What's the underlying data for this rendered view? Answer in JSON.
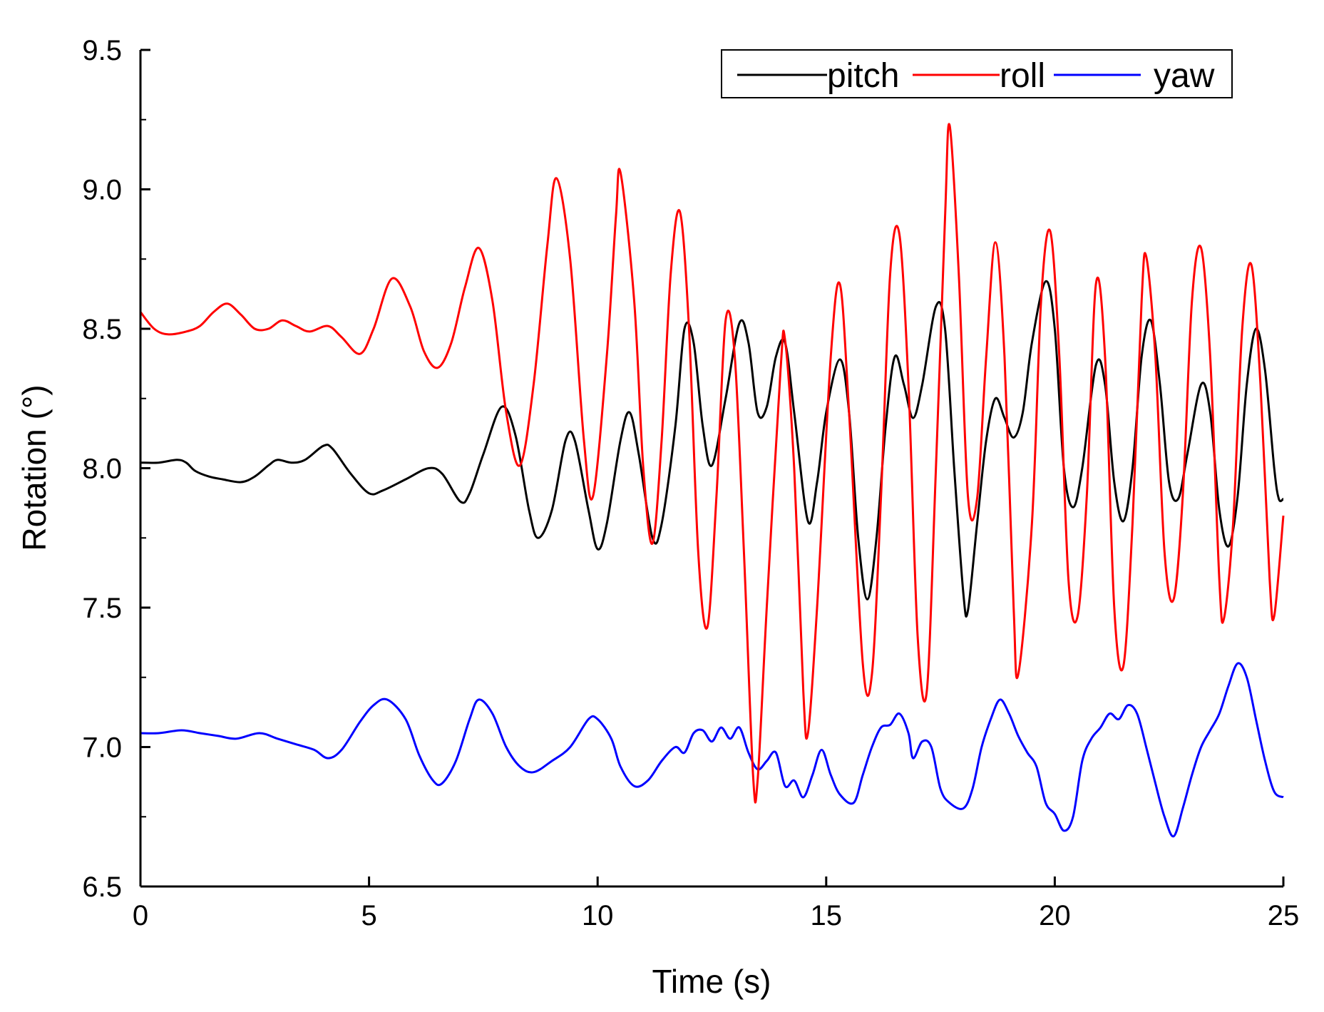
{
  "chart_data": {
    "type": "line",
    "title": "",
    "xlabel": "Time (s)",
    "ylabel": "Rotation (°)",
    "xlim": [
      0,
      25
    ],
    "ylim": [
      6.5,
      9.5
    ],
    "x_ticks": [
      0,
      5,
      10,
      15,
      20,
      25
    ],
    "x_tick_labels": [
      "0",
      "5",
      "10",
      "15",
      "20",
      "25"
    ],
    "y_ticks": [
      6.5,
      7.0,
      7.5,
      8.0,
      8.5,
      9.0,
      9.5
    ],
    "y_tick_labels": [
      "6.5",
      "7.0",
      "7.5",
      "8.0",
      "8.5",
      "9.0",
      "9.5"
    ],
    "grid": false,
    "legend_position": "top-right",
    "series": [
      {
        "name": "pitch",
        "color": "#000000",
        "points": [
          [
            0,
            8.02
          ],
          [
            0.4,
            8.02
          ],
          [
            0.8,
            8.03
          ],
          [
            1.0,
            8.02
          ],
          [
            1.2,
            7.99
          ],
          [
            1.5,
            7.97
          ],
          [
            1.8,
            7.96
          ],
          [
            2.2,
            7.95
          ],
          [
            2.5,
            7.97
          ],
          [
            2.8,
            8.01
          ],
          [
            3.0,
            8.03
          ],
          [
            3.3,
            8.02
          ],
          [
            3.6,
            8.03
          ],
          [
            4.0,
            8.08
          ],
          [
            4.2,
            8.07
          ],
          [
            4.6,
            7.98
          ],
          [
            5.0,
            7.91
          ],
          [
            5.3,
            7.92
          ],
          [
            5.8,
            7.96
          ],
          [
            6.3,
            8.0
          ],
          [
            6.6,
            7.98
          ],
          [
            7.0,
            7.88
          ],
          [
            7.2,
            7.91
          ],
          [
            7.5,
            8.05
          ],
          [
            7.9,
            8.22
          ],
          [
            8.2,
            8.12
          ],
          [
            8.5,
            7.85
          ],
          [
            8.7,
            7.75
          ],
          [
            9.0,
            7.85
          ],
          [
            9.3,
            8.1
          ],
          [
            9.5,
            8.1
          ],
          [
            9.8,
            7.85
          ],
          [
            10.0,
            7.71
          ],
          [
            10.2,
            7.8
          ],
          [
            10.5,
            8.1
          ],
          [
            10.7,
            8.2
          ],
          [
            10.9,
            8.05
          ],
          [
            11.2,
            7.75
          ],
          [
            11.4,
            7.8
          ],
          [
            11.7,
            8.15
          ],
          [
            11.9,
            8.5
          ],
          [
            12.1,
            8.45
          ],
          [
            12.3,
            8.15
          ],
          [
            12.5,
            8.01
          ],
          [
            12.8,
            8.25
          ],
          [
            13.1,
            8.52
          ],
          [
            13.3,
            8.45
          ],
          [
            13.5,
            8.2
          ],
          [
            13.7,
            8.22
          ],
          [
            13.9,
            8.4
          ],
          [
            14.1,
            8.45
          ],
          [
            14.3,
            8.2
          ],
          [
            14.6,
            7.81
          ],
          [
            14.8,
            7.95
          ],
          [
            15.0,
            8.2
          ],
          [
            15.3,
            8.39
          ],
          [
            15.5,
            8.2
          ],
          [
            15.7,
            7.75
          ],
          [
            15.9,
            7.53
          ],
          [
            16.1,
            7.75
          ],
          [
            16.3,
            8.15
          ],
          [
            16.5,
            8.4
          ],
          [
            16.7,
            8.3
          ],
          [
            16.9,
            8.18
          ],
          [
            17.1,
            8.3
          ],
          [
            17.4,
            8.58
          ],
          [
            17.6,
            8.5
          ],
          [
            17.8,
            8.0
          ],
          [
            18.0,
            7.55
          ],
          [
            18.1,
            7.49
          ],
          [
            18.3,
            7.8
          ],
          [
            18.5,
            8.1
          ],
          [
            18.7,
            8.25
          ],
          [
            18.9,
            8.18
          ],
          [
            19.1,
            8.11
          ],
          [
            19.3,
            8.2
          ],
          [
            19.5,
            8.45
          ],
          [
            19.8,
            8.67
          ],
          [
            20.0,
            8.5
          ],
          [
            20.2,
            8.0
          ],
          [
            20.4,
            7.86
          ],
          [
            20.6,
            8.0
          ],
          [
            20.9,
            8.37
          ],
          [
            21.1,
            8.3
          ],
          [
            21.3,
            7.95
          ],
          [
            21.5,
            7.81
          ],
          [
            21.7,
            8.0
          ],
          [
            21.9,
            8.4
          ],
          [
            22.1,
            8.53
          ],
          [
            22.3,
            8.3
          ],
          [
            22.5,
            7.95
          ],
          [
            22.7,
            7.89
          ],
          [
            22.9,
            8.05
          ],
          [
            23.2,
            8.3
          ],
          [
            23.4,
            8.2
          ],
          [
            23.6,
            7.85
          ],
          [
            23.8,
            7.72
          ],
          [
            24.0,
            7.9
          ],
          [
            24.2,
            8.3
          ],
          [
            24.4,
            8.5
          ],
          [
            24.6,
            8.35
          ],
          [
            24.8,
            8.0
          ],
          [
            24.9,
            7.89
          ],
          [
            25.0,
            7.89
          ]
        ]
      },
      {
        "name": "roll",
        "color": "#ff0000",
        "points": [
          [
            0,
            8.56
          ],
          [
            0.3,
            8.5
          ],
          [
            0.6,
            8.48
          ],
          [
            1.0,
            8.49
          ],
          [
            1.3,
            8.51
          ],
          [
            1.6,
            8.56
          ],
          [
            1.9,
            8.59
          ],
          [
            2.2,
            8.55
          ],
          [
            2.5,
            8.5
          ],
          [
            2.8,
            8.5
          ],
          [
            3.1,
            8.53
          ],
          [
            3.4,
            8.51
          ],
          [
            3.7,
            8.49
          ],
          [
            4.1,
            8.51
          ],
          [
            4.4,
            8.47
          ],
          [
            4.8,
            8.41
          ],
          [
            5.1,
            8.5
          ],
          [
            5.5,
            8.68
          ],
          [
            5.9,
            8.58
          ],
          [
            6.2,
            8.42
          ],
          [
            6.5,
            8.36
          ],
          [
            6.8,
            8.45
          ],
          [
            7.1,
            8.65
          ],
          [
            7.4,
            8.79
          ],
          [
            7.7,
            8.6
          ],
          [
            8.0,
            8.2
          ],
          [
            8.3,
            8.01
          ],
          [
            8.6,
            8.3
          ],
          [
            8.9,
            8.8
          ],
          [
            9.1,
            9.04
          ],
          [
            9.4,
            8.75
          ],
          [
            9.7,
            8.1
          ],
          [
            9.9,
            7.9
          ],
          [
            10.2,
            8.4
          ],
          [
            10.4,
            8.9
          ],
          [
            10.5,
            9.06
          ],
          [
            10.8,
            8.6
          ],
          [
            11.0,
            8.0
          ],
          [
            11.2,
            7.73
          ],
          [
            11.4,
            8.1
          ],
          [
            11.6,
            8.7
          ],
          [
            11.8,
            8.92
          ],
          [
            12.0,
            8.5
          ],
          [
            12.2,
            7.7
          ],
          [
            12.4,
            7.43
          ],
          [
            12.6,
            7.9
          ],
          [
            12.8,
            8.53
          ],
          [
            13.0,
            8.4
          ],
          [
            13.2,
            7.7
          ],
          [
            13.4,
            6.9
          ],
          [
            13.5,
            6.88
          ],
          [
            13.7,
            7.5
          ],
          [
            14.0,
            8.35
          ],
          [
            14.1,
            8.46
          ],
          [
            14.3,
            8.0
          ],
          [
            14.5,
            7.2
          ],
          [
            14.6,
            7.05
          ],
          [
            14.8,
            7.5
          ],
          [
            15.1,
            8.4
          ],
          [
            15.3,
            8.66
          ],
          [
            15.5,
            8.2
          ],
          [
            15.8,
            7.3
          ],
          [
            16.0,
            7.26
          ],
          [
            16.2,
            7.9
          ],
          [
            16.4,
            8.7
          ],
          [
            16.6,
            8.84
          ],
          [
            16.8,
            8.3
          ],
          [
            17.0,
            7.4
          ],
          [
            17.2,
            7.2
          ],
          [
            17.4,
            8.0
          ],
          [
            17.6,
            8.9
          ],
          [
            17.7,
            9.23
          ],
          [
            17.9,
            8.7
          ],
          [
            18.1,
            7.9
          ],
          [
            18.3,
            7.89
          ],
          [
            18.5,
            8.4
          ],
          [
            18.7,
            8.81
          ],
          [
            18.9,
            8.4
          ],
          [
            19.1,
            7.5
          ],
          [
            19.2,
            7.26
          ],
          [
            19.5,
            7.8
          ],
          [
            19.7,
            8.6
          ],
          [
            19.9,
            8.85
          ],
          [
            20.1,
            8.4
          ],
          [
            20.3,
            7.6
          ],
          [
            20.5,
            7.47
          ],
          [
            20.7,
            7.9
          ],
          [
            20.9,
            8.66
          ],
          [
            21.1,
            8.4
          ],
          [
            21.3,
            7.5
          ],
          [
            21.5,
            7.29
          ],
          [
            21.7,
            7.8
          ],
          [
            21.9,
            8.6
          ],
          [
            22.0,
            8.76
          ],
          [
            22.2,
            8.4
          ],
          [
            22.4,
            7.7
          ],
          [
            22.6,
            7.53
          ],
          [
            22.8,
            7.9
          ],
          [
            23.0,
            8.6
          ],
          [
            23.2,
            8.79
          ],
          [
            23.4,
            8.4
          ],
          [
            23.6,
            7.6
          ],
          [
            23.7,
            7.46
          ],
          [
            23.9,
            7.8
          ],
          [
            24.1,
            8.5
          ],
          [
            24.3,
            8.73
          ],
          [
            24.5,
            8.3
          ],
          [
            24.7,
            7.6
          ],
          [
            24.8,
            7.47
          ],
          [
            25.0,
            7.83
          ]
        ]
      },
      {
        "name": "yaw",
        "color": "#0000ff",
        "points": [
          [
            0,
            7.05
          ],
          [
            0.4,
            7.05
          ],
          [
            0.9,
            7.06
          ],
          [
            1.3,
            7.05
          ],
          [
            1.7,
            7.04
          ],
          [
            2.1,
            7.03
          ],
          [
            2.6,
            7.05
          ],
          [
            3.0,
            7.03
          ],
          [
            3.4,
            7.01
          ],
          [
            3.8,
            6.99
          ],
          [
            4.1,
            6.96
          ],
          [
            4.4,
            6.99
          ],
          [
            4.8,
            7.09
          ],
          [
            5.1,
            7.15
          ],
          [
            5.4,
            7.17
          ],
          [
            5.8,
            7.1
          ],
          [
            6.1,
            6.97
          ],
          [
            6.4,
            6.88
          ],
          [
            6.6,
            6.87
          ],
          [
            6.9,
            6.95
          ],
          [
            7.2,
            7.1
          ],
          [
            7.4,
            7.17
          ],
          [
            7.7,
            7.12
          ],
          [
            8.0,
            7.0
          ],
          [
            8.3,
            6.93
          ],
          [
            8.6,
            6.91
          ],
          [
            9.0,
            6.95
          ],
          [
            9.4,
            7.0
          ],
          [
            9.8,
            7.1
          ],
          [
            10.0,
            7.1
          ],
          [
            10.3,
            7.03
          ],
          [
            10.5,
            6.93
          ],
          [
            10.8,
            6.86
          ],
          [
            11.1,
            6.88
          ],
          [
            11.4,
            6.95
          ],
          [
            11.7,
            7.0
          ],
          [
            11.9,
            6.98
          ],
          [
            12.1,
            7.05
          ],
          [
            12.3,
            7.06
          ],
          [
            12.5,
            7.02
          ],
          [
            12.7,
            7.07
          ],
          [
            12.9,
            7.03
          ],
          [
            13.1,
            7.07
          ],
          [
            13.3,
            6.98
          ],
          [
            13.5,
            6.92
          ],
          [
            13.7,
            6.95
          ],
          [
            13.9,
            6.98
          ],
          [
            14.1,
            6.86
          ],
          [
            14.3,
            6.88
          ],
          [
            14.5,
            6.82
          ],
          [
            14.7,
            6.9
          ],
          [
            14.9,
            6.99
          ],
          [
            15.1,
            6.9
          ],
          [
            15.3,
            6.83
          ],
          [
            15.6,
            6.8
          ],
          [
            15.8,
            6.9
          ],
          [
            16.0,
            7.0
          ],
          [
            16.2,
            7.07
          ],
          [
            16.4,
            7.08
          ],
          [
            16.6,
            7.12
          ],
          [
            16.8,
            7.05
          ],
          [
            16.9,
            6.96
          ],
          [
            17.1,
            7.02
          ],
          [
            17.3,
            7.0
          ],
          [
            17.5,
            6.85
          ],
          [
            17.7,
            6.8
          ],
          [
            18.0,
            6.78
          ],
          [
            18.2,
            6.85
          ],
          [
            18.4,
            7.0
          ],
          [
            18.6,
            7.1
          ],
          [
            18.8,
            7.17
          ],
          [
            19.0,
            7.12
          ],
          [
            19.2,
            7.04
          ],
          [
            19.4,
            6.98
          ],
          [
            19.6,
            6.93
          ],
          [
            19.8,
            6.8
          ],
          [
            20.0,
            6.76
          ],
          [
            20.2,
            6.7
          ],
          [
            20.4,
            6.75
          ],
          [
            20.6,
            6.95
          ],
          [
            20.8,
            7.03
          ],
          [
            21.0,
            7.07
          ],
          [
            21.2,
            7.12
          ],
          [
            21.4,
            7.1
          ],
          [
            21.6,
            7.15
          ],
          [
            21.8,
            7.12
          ],
          [
            22.0,
            7.0
          ],
          [
            22.2,
            6.87
          ],
          [
            22.4,
            6.75
          ],
          [
            22.6,
            6.68
          ],
          [
            22.8,
            6.78
          ],
          [
            23.0,
            6.9
          ],
          [
            23.2,
            7.0
          ],
          [
            23.4,
            7.06
          ],
          [
            23.6,
            7.12
          ],
          [
            23.8,
            7.22
          ],
          [
            24.0,
            7.3
          ],
          [
            24.2,
            7.25
          ],
          [
            24.4,
            7.1
          ],
          [
            24.6,
            6.95
          ],
          [
            24.8,
            6.84
          ],
          [
            25.0,
            6.82
          ]
        ]
      }
    ]
  }
}
